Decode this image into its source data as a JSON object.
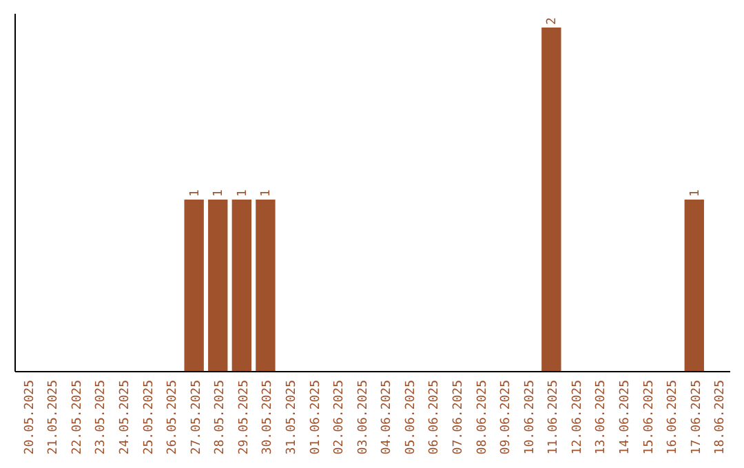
{
  "chart_data": {
    "type": "bar",
    "categories": [
      "20.05.2025",
      "21.05.2025",
      "22.05.2025",
      "23.05.2025",
      "24.05.2025",
      "25.05.2025",
      "26.05.2025",
      "27.05.2025",
      "28.05.2025",
      "29.05.2025",
      "30.05.2025",
      "31.05.2025",
      "01.06.2025",
      "02.06.2025",
      "03.06.2025",
      "04.06.2025",
      "05.06.2025",
      "06.06.2025",
      "07.06.2025",
      "08.06.2025",
      "09.06.2025",
      "10.06.2025",
      "11.06.2025",
      "12.06.2025",
      "13.06.2025",
      "14.06.2025",
      "15.06.2025",
      "16.06.2025",
      "17.06.2025",
      "18.06.2025"
    ],
    "values": [
      0,
      0,
      0,
      0,
      0,
      0,
      0,
      1,
      1,
      1,
      1,
      0,
      0,
      0,
      0,
      0,
      0,
      0,
      0,
      0,
      0,
      0,
      2,
      0,
      0,
      0,
      0,
      0,
      1,
      0
    ],
    "color": "#a0522d",
    "relative": false,
    "value_labels": [
      null,
      null,
      null,
      null,
      null,
      null,
      null,
      "1",
      "1",
      "1",
      "1",
      null,
      null,
      null,
      null,
      null,
      null,
      null,
      null,
      null,
      null,
      null,
      "2",
      null,
      null,
      null,
      null,
      null,
      "1",
      null
    ]
  }
}
